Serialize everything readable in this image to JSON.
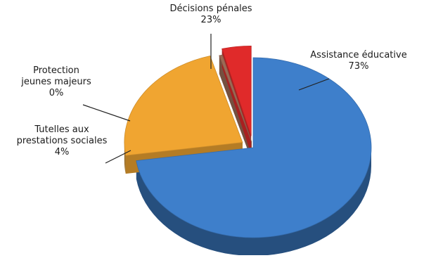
{
  "chart_data": {
    "type": "pie",
    "style": "3d-exploded",
    "slices": [
      {
        "label": "Assistance éducative",
        "value": 73,
        "value_label": "73%",
        "color": "#3e7fcb"
      },
      {
        "label": "Décisions pénales",
        "value": 23,
        "value_label": "23%",
        "color": "#f0a531"
      },
      {
        "label": "Protection jeunes majeurs",
        "value": 0,
        "value_label": "0%",
        "color": "#9c6a55"
      },
      {
        "label": "Tutelles aux prestations sociales",
        "value": 4,
        "value_label": "4%",
        "color": "#e02a2a"
      }
    ],
    "legend": "none"
  }
}
